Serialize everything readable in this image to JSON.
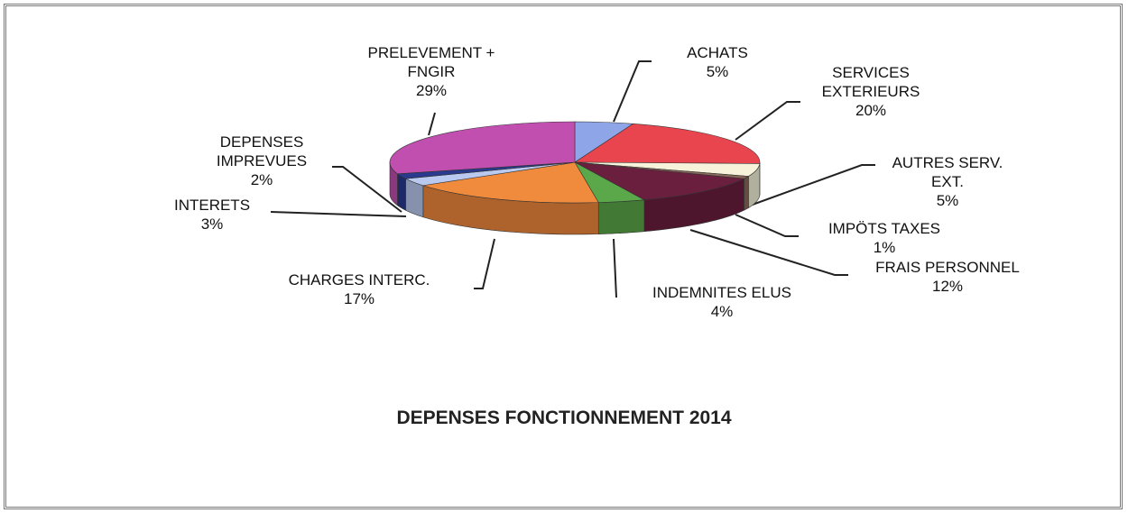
{
  "chart_data": {
    "type": "pie",
    "title": "DEPENSES FONCTIONNEMENT 2014",
    "categories": [
      "ACHATS",
      "SERVICES EXTERIEURS",
      "AUTRES SERV. EXT.",
      "IMPÖTS TAXES",
      "FRAIS PERSONNEL",
      "INDEMNITES ELUS",
      "CHARGES INTERC.",
      "INTERETS",
      "DEPENSES IMPREVUES",
      "PRELEVEMENT + FNGIR"
    ],
    "values": [
      5,
      20,
      5,
      1,
      12,
      4,
      17,
      3,
      2,
      29
    ],
    "value_labels": [
      "5%",
      "20%",
      "5%",
      "1%",
      "12%",
      "4%",
      "17%",
      "3%",
      "2%",
      "29%"
    ],
    "colors": [
      "#8ea6e8",
      "#e8454f",
      "#f6f3da",
      "#8b6a5c",
      "#6b1f3f",
      "#5aa84a",
      "#f08a3c",
      "#b9c9f0",
      "#2a3b8f",
      "#c04fb0"
    ]
  }
}
